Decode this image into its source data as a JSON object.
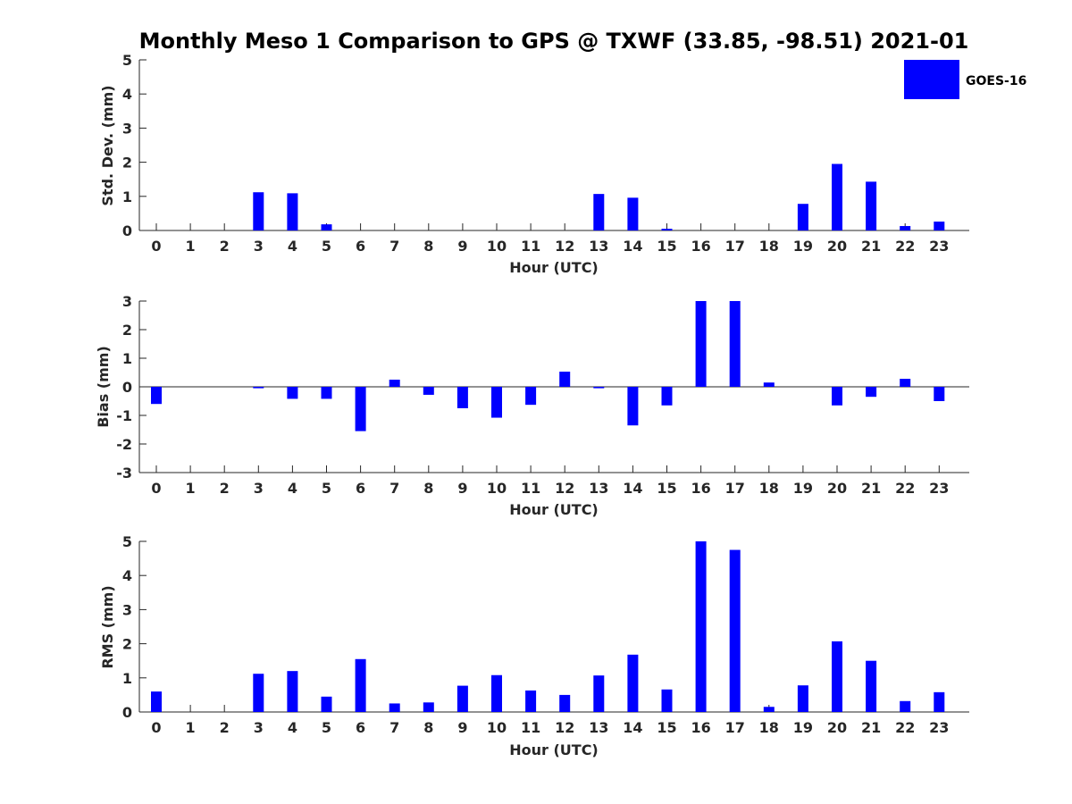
{
  "title": "Monthly Meso 1 Comparison to GPS @ TXWF (33.85, -98.51) 2021-01",
  "legend": {
    "label": "GOES-16",
    "placement": "top-right",
    "color": "#0000ff"
  },
  "chart_data": [
    {
      "type": "bar",
      "categories": [
        "0",
        "1",
        "2",
        "3",
        "4",
        "5",
        "6",
        "7",
        "8",
        "9",
        "10",
        "11",
        "12",
        "13",
        "14",
        "15",
        "16",
        "17",
        "18",
        "19",
        "20",
        "21",
        "22",
        "23"
      ],
      "series": [
        {
          "name": "GOES-16",
          "color": "#0000ff",
          "values": [
            null,
            null,
            null,
            1.12,
            1.09,
            0.18,
            null,
            null,
            null,
            null,
            null,
            null,
            null,
            1.07,
            0.96,
            0.05,
            null,
            null,
            null,
            0.78,
            1.95,
            1.43,
            0.13,
            0.26
          ]
        }
      ],
      "xlabel": "Hour (UTC)",
      "ylabel": "Std. Dev. (mm)",
      "ylim": [
        0,
        5
      ],
      "yticks": [
        0,
        1,
        2,
        3,
        4,
        5
      ],
      "grid": false
    },
    {
      "type": "bar",
      "categories": [
        "0",
        "1",
        "2",
        "3",
        "4",
        "5",
        "6",
        "7",
        "8",
        "9",
        "10",
        "11",
        "12",
        "13",
        "14",
        "15",
        "16",
        "17",
        "18",
        "19",
        "20",
        "21",
        "22",
        "23"
      ],
      "series": [
        {
          "name": "GOES-16",
          "color": "#0000ff",
          "values": [
            -0.6,
            null,
            null,
            -0.05,
            -0.42,
            -0.42,
            -1.55,
            0.25,
            -0.28,
            -0.75,
            -1.08,
            -0.63,
            0.53,
            -0.05,
            -1.35,
            -0.65,
            3.0,
            3.0,
            0.15,
            null,
            -0.65,
            -0.35,
            0.28,
            -0.5
          ]
        }
      ],
      "xlabel": "Hour (UTC)",
      "ylabel": "Bias (mm)",
      "ylim": [
        -3,
        3
      ],
      "yticks": [
        -3,
        -2,
        -1,
        0,
        1,
        2,
        3
      ],
      "grid": false
    },
    {
      "type": "bar",
      "categories": [
        "0",
        "1",
        "2",
        "3",
        "4",
        "5",
        "6",
        "7",
        "8",
        "9",
        "10",
        "11",
        "12",
        "13",
        "14",
        "15",
        "16",
        "17",
        "18",
        "19",
        "20",
        "21",
        "22",
        "23"
      ],
      "series": [
        {
          "name": "GOES-16",
          "color": "#0000ff",
          "values": [
            0.6,
            null,
            null,
            1.12,
            1.2,
            0.45,
            1.55,
            0.25,
            0.28,
            0.77,
            1.08,
            0.63,
            0.5,
            1.07,
            1.68,
            0.66,
            5.0,
            4.75,
            0.15,
            0.78,
            2.07,
            1.5,
            0.32,
            0.58
          ]
        }
      ],
      "xlabel": "Hour (UTC)",
      "ylabel": "RMS (mm)",
      "ylim": [
        0,
        5
      ],
      "yticks": [
        0,
        1,
        2,
        3,
        4,
        5
      ],
      "grid": false
    }
  ]
}
